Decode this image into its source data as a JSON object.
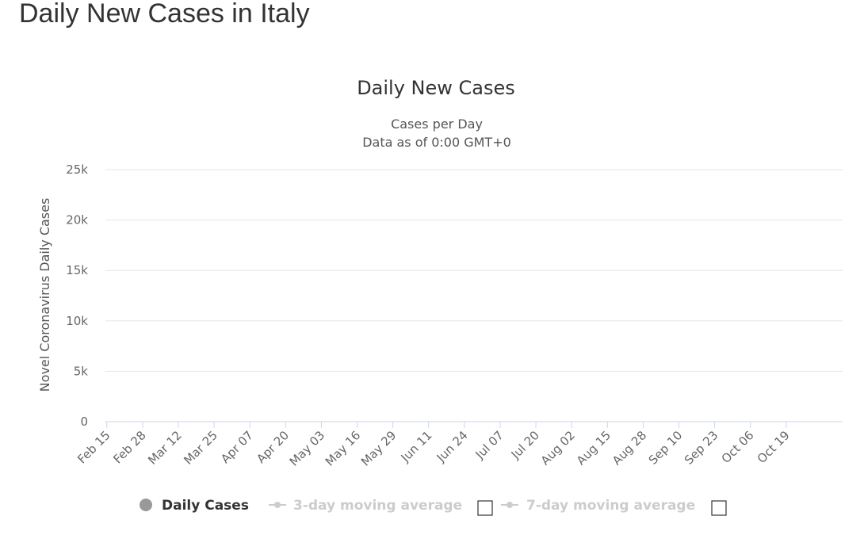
{
  "page": {
    "title": "Daily New Cases in Italy"
  },
  "chart_data": {
    "type": "bar",
    "title": "Daily New Cases",
    "subtitle_lines": [
      "Cases per Day",
      "Data as of 0:00 GMT+0"
    ],
    "ylabel": "Novel Coronavirus Daily Cases",
    "xlabel": "",
    "ylim": [
      0,
      25000
    ],
    "y_ticks": [
      0,
      5000,
      10000,
      15000,
      20000,
      25000
    ],
    "y_tick_labels": [
      "0",
      "5k",
      "10k",
      "15k",
      "20k",
      "25k"
    ],
    "x_tick_labels": [
      "Feb 15",
      "Feb 28",
      "Mar 12",
      "Mar 25",
      "Apr 07",
      "Apr 20",
      "May 03",
      "May 16",
      "May 29",
      "Jun 11",
      "Jun 24",
      "Jul 07",
      "Jul 20",
      "Aug 02",
      "Aug 15",
      "Aug 28",
      "Sep 10",
      "Sep 23",
      "Oct 06",
      "Oct 19"
    ],
    "x_start": "Feb 15",
    "grid": true,
    "legend_position": "bottom",
    "bar_color": "#999999",
    "series": [
      {
        "name": "Daily Cases",
        "color": "#999999",
        "visible": true,
        "values": [
          0,
          0,
          0,
          0,
          0,
          0,
          0,
          0,
          0,
          0,
          0,
          0,
          0,
          0,
          0,
          0,
          0,
          0,
          0,
          0,
          0,
          0,
          0,
          0,
          0,
          0,
          0,
          0,
          0,
          0,
          0,
          0,
          0,
          0,
          0,
          0,
          0,
          0,
          0,
          0,
          0,
          0,
          0,
          0,
          0,
          0,
          0,
          0,
          0,
          0,
          0,
          0,
          0,
          0,
          0,
          0,
          0,
          0,
          0,
          0,
          0,
          0,
          0,
          0,
          0,
          0,
          0,
          0,
          0,
          0,
          0,
          0,
          0,
          0,
          0,
          0,
          0,
          0,
          0,
          0,
          0,
          0,
          0,
          0,
          0,
          0,
          0,
          0,
          0,
          0,
          0,
          0,
          0,
          0,
          0,
          0,
          0,
          0,
          0,
          0,
          0,
          0,
          0,
          0,
          0,
          0,
          0,
          0,
          0,
          0,
          0,
          0,
          0,
          0,
          0,
          0,
          0,
          0,
          0,
          0,
          0,
          0,
          0,
          0,
          0,
          0,
          0,
          0,
          0,
          0,
          0,
          0,
          0,
          0,
          0,
          0,
          0,
          0,
          0,
          0,
          0,
          0,
          0,
          0,
          0,
          0,
          0,
          0,
          0,
          0,
          0,
          0,
          0,
          0,
          0,
          0,
          0,
          0,
          0,
          0,
          0,
          0,
          0,
          0,
          0,
          0,
          0,
          0,
          0,
          0,
          0,
          0,
          0,
          0,
          0,
          0,
          0,
          0,
          0,
          0,
          0,
          0,
          0,
          0,
          0,
          0,
          0,
          0,
          0,
          0,
          0,
          0,
          0,
          0,
          0,
          0,
          0,
          0,
          0,
          0,
          0,
          0,
          0,
          0,
          0,
          0,
          0,
          0,
          0,
          0,
          0,
          0,
          0,
          0,
          0,
          0,
          0,
          0,
          0,
          0,
          0,
          0,
          0,
          0,
          0,
          0,
          0,
          0,
          0,
          0,
          0,
          0,
          0,
          0,
          0,
          0,
          0,
          0,
          0,
          0,
          0,
          0,
          0,
          0,
          0,
          0,
          0,
          0,
          0,
          0,
          0,
          0,
          0,
          0,
          0,
          0,
          0,
          0,
          0,
          0,
          0,
          0,
          0,
          0,
          0,
          0,
          0,
          0
        ]
      },
      {
        "name": "3-day moving average",
        "color": "#cccccc",
        "visible": false
      },
      {
        "name": "7-day moving average",
        "color": "#cccccc",
        "visible": false
      }
    ]
  },
  "legend": {
    "items": [
      {
        "label": "Daily Cases",
        "color": "#333333",
        "marker_color": "#999999"
      },
      {
        "label": "3-day moving average",
        "color": "#cccccc",
        "marker_color": "#cccccc"
      },
      {
        "label": "7-day moving average",
        "color": "#cccccc",
        "marker_color": "#cccccc"
      }
    ]
  }
}
